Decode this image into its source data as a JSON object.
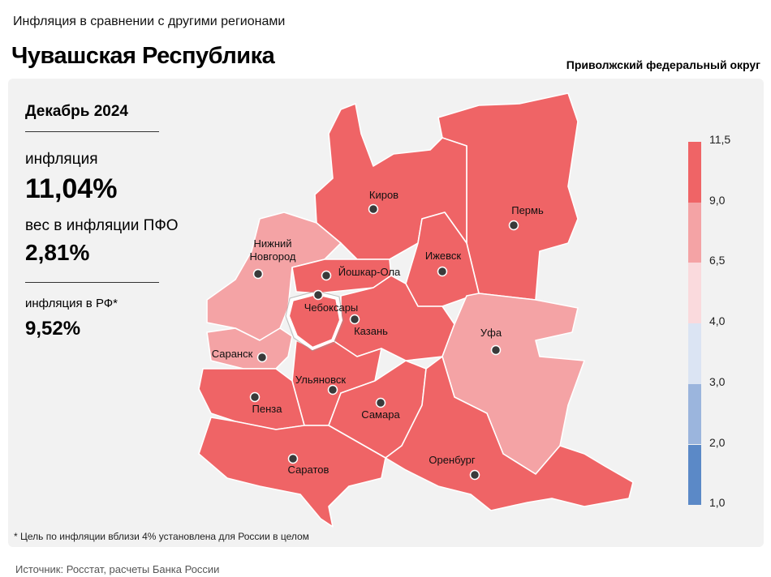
{
  "header": {
    "kicker": "Инфляция в сравнении с другими регионами",
    "region": "Чувашская Республика",
    "district": "Приволжский федеральный округ"
  },
  "stats": {
    "period": "Декабрь 2024",
    "inflation_label": "инфляция",
    "inflation_value": "11,04%",
    "weight_label": "вес в инфляции ПФО",
    "weight_value": "2,81%",
    "rf_label": "инфляция в РФ*",
    "rf_value": "9,52%"
  },
  "legend": {
    "ticks": [
      "11,5",
      "9,0",
      "6,5",
      "4,0",
      "3,0",
      "2,0",
      "1,0"
    ],
    "colors": [
      "#ef6466",
      "#f4a3a5",
      "#fadadd",
      "#dbe4f3",
      "#9bb5dd",
      "#5b89c7"
    ]
  },
  "map": {
    "highlight_color": "#ffffff",
    "cities": [
      {
        "name": "Киров",
        "bin": "9,0–11,5"
      },
      {
        "name": "Пермь",
        "bin": "9,0–11,5"
      },
      {
        "name": "Нижний\nНовгород",
        "line1": "Нижний",
        "line2": "Новгород",
        "bin": "6,5–9,0"
      },
      {
        "name": "Йошкар-Ола",
        "bin": "9,0–11,5"
      },
      {
        "name": "Ижевск",
        "bin": "9,0–11,5"
      },
      {
        "name": "Чебоксары",
        "bin": "9,0–11,5"
      },
      {
        "name": "Казань",
        "bin": "9,0–11,5"
      },
      {
        "name": "Уфа",
        "bin": "6,5–9,0"
      },
      {
        "name": "Саранск",
        "bin": "6,5–9,0"
      },
      {
        "name": "Ульяновск",
        "bin": "9,0–11,5"
      },
      {
        "name": "Пенза",
        "bin": "9,0–11,5"
      },
      {
        "name": "Самара",
        "bin": "9,0–11,5"
      },
      {
        "name": "Саратов",
        "bin": "9,0–11,5"
      },
      {
        "name": "Оренбург",
        "bin": "9,0–11,5"
      }
    ]
  },
  "footnote": "* Цель по инфляции вблизи 4% установлена для России в целом",
  "source": "Источник: Росстат, расчеты Банка России"
}
